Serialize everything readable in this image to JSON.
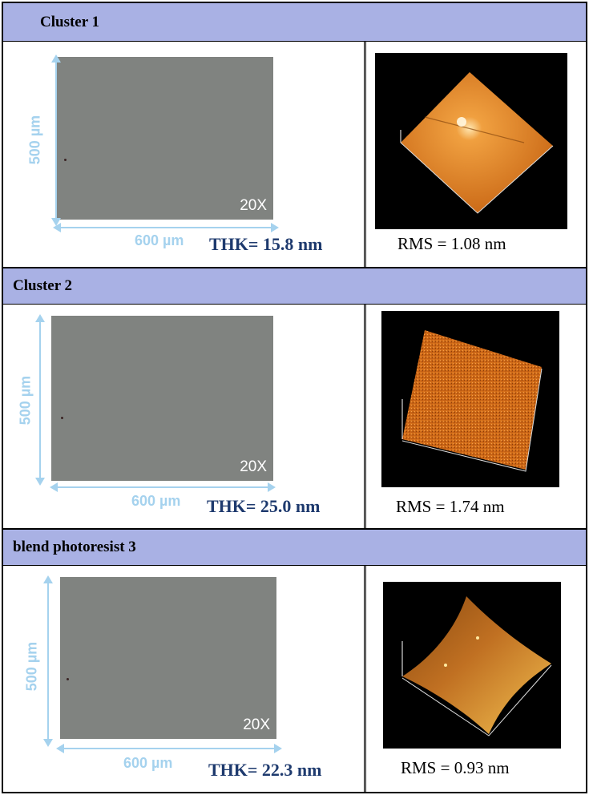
{
  "rows": [
    {
      "header": "Cluster 1",
      "magnification": "20X",
      "vertical_scale": "500 µm",
      "horizontal_scale": "600 µm",
      "thickness": "THK= 15.8 nm",
      "roughness": "RMS = 1.08 nm"
    },
    {
      "header": "Cluster 2",
      "magnification": "20X",
      "vertical_scale": "500 µm",
      "horizontal_scale": "600 µm",
      "thickness": "THK= 25.0 nm",
      "roughness": "RMS = 1.74 nm"
    },
    {
      "header": "blend photoresist 3",
      "magnification": "20X",
      "vertical_scale": "500 µm",
      "horizontal_scale": "600 µm",
      "thickness": "THK= 22.3 nm",
      "roughness": "RMS = 0.93 nm"
    }
  ],
  "colors": {
    "header_fill": "#a9b1e4",
    "scale_arrow": "#a5d2ee",
    "thickness_text": "#1e3a6e",
    "afm_surface": "#d9791a"
  }
}
